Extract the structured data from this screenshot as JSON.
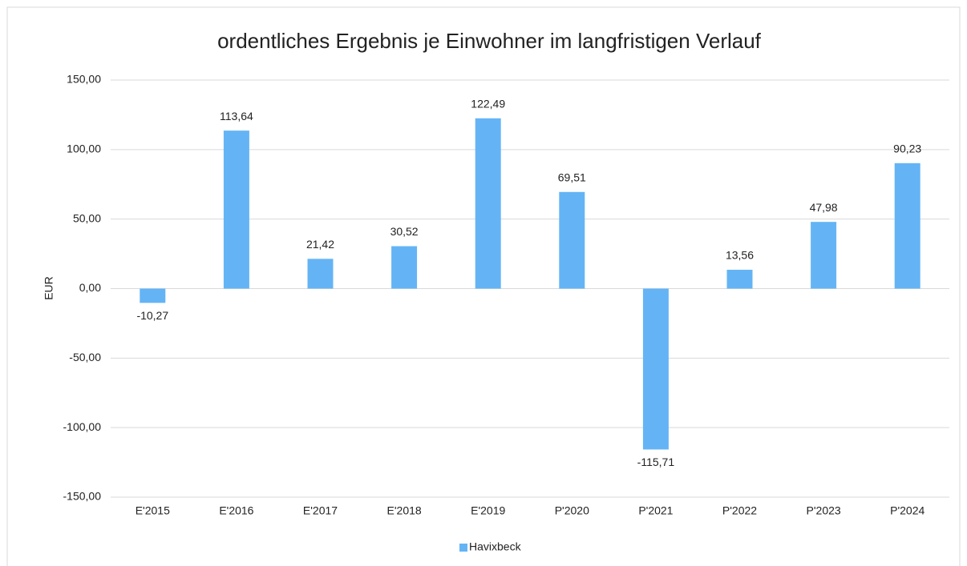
{
  "chart_data": {
    "type": "bar",
    "title": "ordentliches Ergebnis je Einwohner im langfristigen Verlauf",
    "y_label": "EUR",
    "categories": [
      "E'2015",
      "E'2016",
      "E'2017",
      "E'2018",
      "E'2019",
      "P'2020",
      "P'2021",
      "P'2022",
      "P'2023",
      "P'2024"
    ],
    "series": [
      {
        "name": "Havixbeck",
        "color": "#64b4f5",
        "values": [
          -10.27,
          113.64,
          21.42,
          30.52,
          122.49,
          69.51,
          -115.71,
          13.56,
          47.98,
          90.23
        ],
        "value_labels": [
          "-10,27",
          "113,64",
          "21,42",
          "30,52",
          "122,49",
          "69,51",
          "-115,71",
          "13,56",
          "47,98",
          "90,23"
        ]
      }
    ],
    "ylim": [
      -150,
      150
    ],
    "yticks": [
      {
        "value": -150,
        "label": "-150,00"
      },
      {
        "value": -100,
        "label": "-100,00"
      },
      {
        "value": -50,
        "label": "-50,00"
      },
      {
        "value": 0,
        "label": "0,00"
      },
      {
        "value": 50,
        "label": "50,00"
      },
      {
        "value": 100,
        "label": "100,00"
      },
      {
        "value": 150,
        "label": "150,00"
      }
    ],
    "grid": true,
    "legend": "bottom"
  }
}
